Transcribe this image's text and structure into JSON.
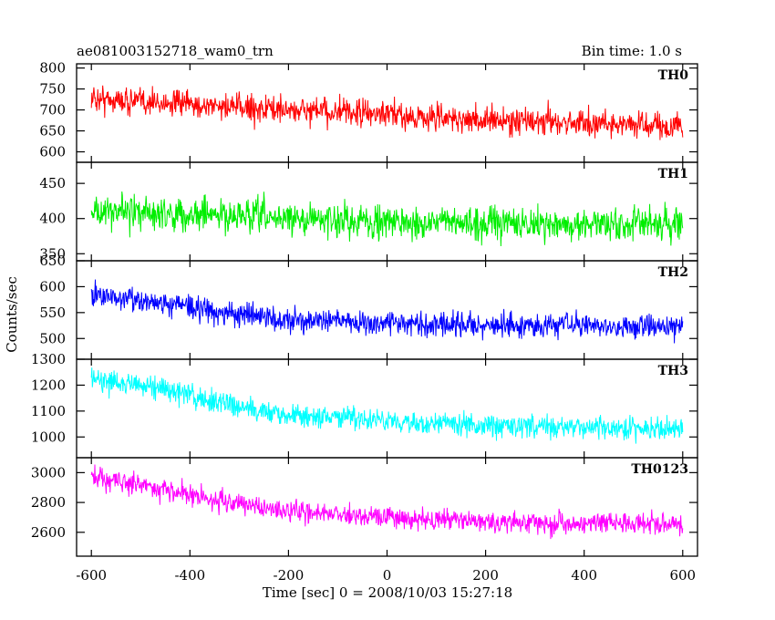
{
  "chart_data": {
    "type": "line",
    "title_left": "ae081003152718_wam0_trn",
    "title_right": "Bin time: 1.0 s",
    "xlabel": "Time [sec] 0 = 2008/10/03 15:27:18",
    "ylabel": "Counts/sec",
    "xlim": [
      -630,
      630
    ],
    "x_ticks": [
      -600,
      -400,
      -200,
      0,
      200,
      400,
      600
    ],
    "x_range": [
      -600,
      600
    ],
    "panels": [
      {
        "name": "TH0",
        "color": "#ff0000",
        "ylim": [
          575,
          810
        ],
        "y_ticks": [
          600,
          650,
          700,
          750,
          800
        ],
        "trend": {
          "x": [
            -600,
            -400,
            -200,
            0,
            200,
            400,
            600
          ],
          "y": [
            728,
            712,
            700,
            688,
            675,
            670,
            660
          ]
        },
        "noise": 32
      },
      {
        "name": "TH1",
        "color": "#00ee00",
        "ylim": [
          340,
          480
        ],
        "y_ticks": [
          350,
          400,
          450
        ],
        "trend": {
          "x": [
            -600,
            -400,
            -200,
            0,
            200,
            400,
            600
          ],
          "y": [
            410,
            406,
            400,
            396,
            393,
            392,
            390
          ]
        },
        "noise": 23
      },
      {
        "name": "TH2",
        "color": "#0000ff",
        "ylim": [
          460,
          650
        ],
        "y_ticks": [
          500,
          550,
          600,
          650
        ],
        "trend": {
          "x": [
            -600,
            -500,
            -400,
            -200,
            0,
            200,
            400,
            600
          ],
          "y": [
            585,
            575,
            560,
            535,
            530,
            525,
            525,
            525
          ]
        },
        "noise": 23
      },
      {
        "name": "TH3",
        "color": "#00ffff",
        "ylim": [
          920,
          1300
        ],
        "y_ticks": [
          1000,
          1100,
          1200,
          1300
        ],
        "trend": {
          "x": [
            -600,
            -500,
            -400,
            -300,
            -200,
            0,
            200,
            400,
            600
          ],
          "y": [
            1225,
            1200,
            1160,
            1120,
            1085,
            1060,
            1045,
            1040,
            1030
          ]
        },
        "noise": 45
      },
      {
        "name": "TH0123",
        "color": "#ff00ff",
        "ylim": [
          2440,
          3100
        ],
        "y_ticks": [
          2600,
          2800,
          3000
        ],
        "trend": {
          "x": [
            -600,
            -500,
            -400,
            -300,
            -200,
            0,
            200,
            400,
            600
          ],
          "y": [
            2980,
            2920,
            2850,
            2790,
            2740,
            2700,
            2670,
            2660,
            2650
          ]
        },
        "noise": 70
      }
    ]
  }
}
